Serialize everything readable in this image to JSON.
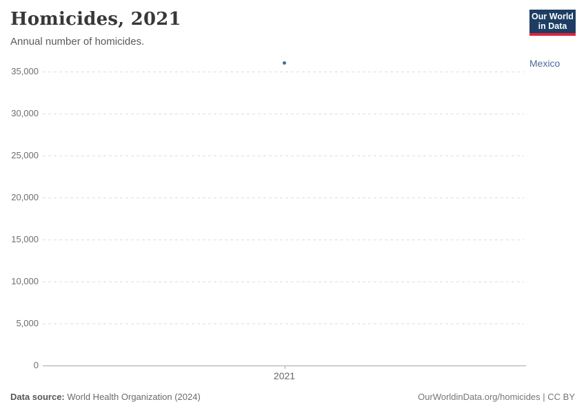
{
  "header": {
    "title": "Homicides, 2021",
    "subtitle": "Annual number of homicides.",
    "logo": {
      "line1": "Our World",
      "line2": "in Data",
      "bg_color": "#1d3d63",
      "accent_color": "#e0233c"
    }
  },
  "chart_data": {
    "type": "scatter",
    "title": "Homicides, 2021",
    "subtitle": "Annual number of homicides.",
    "xlabel": "",
    "ylabel": "",
    "x_ticks": [
      2021
    ],
    "x_tick_labels": [
      "2021"
    ],
    "y_ticks": [
      0,
      5000,
      10000,
      15000,
      20000,
      25000,
      30000,
      35000
    ],
    "y_tick_labels": [
      "0",
      "5,000",
      "10,000",
      "15,000",
      "20,000",
      "25,000",
      "30,000",
      "35,000"
    ],
    "ylim": [
      0,
      36500
    ],
    "grid": "horizontal-dashed",
    "legend_position": "right-of-point",
    "series": [
      {
        "name": "Mexico",
        "color": "#4C6A9C",
        "points": [
          {
            "x": 2021,
            "y": 36000
          }
        ]
      }
    ]
  },
  "footer": {
    "source_label": "Data source:",
    "source_value": " World Health Organization (2024)",
    "credit": "OurWorldinData.org/homicides | CC BY"
  },
  "colors": {
    "gridline": "#dcdcdc",
    "axis": "#a6a6a6",
    "tick_label": "#6e6e6e",
    "series_blue": "#4C6A9C"
  }
}
